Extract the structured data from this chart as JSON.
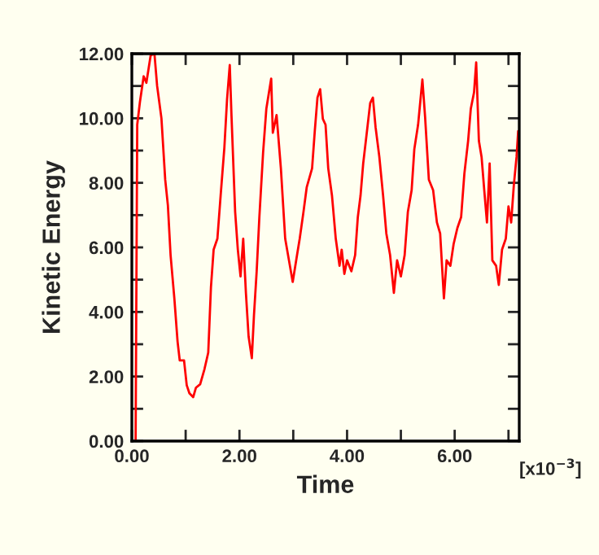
{
  "chart_data": {
    "type": "line",
    "xlabel": "Time",
    "ylabel": "Kinetic Energy",
    "annotations": [
      "[x10$^{−3}$]"
    ],
    "xlim": [
      0,
      7.2
    ],
    "ylim": [
      0,
      12
    ],
    "xticks": [
      {
        "value": 0,
        "label": "0.00"
      },
      {
        "value": 1,
        "label": null
      },
      {
        "value": 2,
        "label": "2.00"
      },
      {
        "value": 3,
        "label": null
      },
      {
        "value": 4,
        "label": "4.00"
      },
      {
        "value": 5,
        "label": null
      },
      {
        "value": 6,
        "label": "6.00"
      },
      {
        "value": 7,
        "label": null
      }
    ],
    "yticks": [
      {
        "value": 0,
        "label": "0.00"
      },
      {
        "value": 1,
        "label": null
      },
      {
        "value": 2,
        "label": "2.00"
      },
      {
        "value": 3,
        "label": null
      },
      {
        "value": 4,
        "label": "4.00"
      },
      {
        "value": 5,
        "label": null
      },
      {
        "value": 6,
        "label": "6.00"
      },
      {
        "value": 7,
        "label": null
      },
      {
        "value": 8,
        "label": "8.00"
      },
      {
        "value": 9,
        "label": null
      },
      {
        "value": 10,
        "label": "10.00"
      },
      {
        "value": 11,
        "label": null
      },
      {
        "value": 12,
        "label": "12.00"
      }
    ],
    "grid": false,
    "legend": false,
    "marker": "none",
    "line_style": "solid",
    "series": [
      {
        "color": "#ff0000",
        "x": [
          0.07,
          0.1,
          0.15,
          0.22,
          0.27,
          0.35,
          0.42,
          0.47,
          0.55,
          0.62,
          0.67,
          0.72,
          0.79,
          0.85,
          0.89,
          0.97,
          1.02,
          1.07,
          1.14,
          1.19,
          1.27,
          1.35,
          1.42,
          1.47,
          1.52,
          1.59,
          1.65,
          1.72,
          1.77,
          1.82,
          1.85,
          1.92,
          1.97,
          2.02,
          2.07,
          2.12,
          2.17,
          2.23,
          2.27,
          2.32,
          2.37,
          2.44,
          2.5,
          2.59,
          2.62,
          2.69,
          2.77,
          2.85,
          2.92,
          2.99,
          3.07,
          3.12,
          3.19,
          3.25,
          3.35,
          3.4,
          3.45,
          3.5,
          3.55,
          3.6,
          3.65,
          3.72,
          3.79,
          3.86,
          3.9,
          3.95,
          4.0,
          4.08,
          4.15,
          4.2,
          4.25,
          4.3,
          4.37,
          4.43,
          4.48,
          4.53,
          4.6,
          4.67,
          4.73,
          4.8,
          4.87,
          4.93,
          5.0,
          5.07,
          5.13,
          5.2,
          5.25,
          5.32,
          5.4,
          5.45,
          5.52,
          5.6,
          5.67,
          5.73,
          5.8,
          5.85,
          5.92,
          5.98,
          6.05,
          6.12,
          6.18,
          6.25,
          6.3,
          6.36,
          6.4,
          6.45,
          6.5,
          6.55,
          6.6,
          6.65,
          6.7,
          6.77,
          6.82,
          6.88,
          6.95,
          7.0,
          7.05,
          7.1,
          7.15,
          7.18
        ],
        "values": [
          0,
          9.8,
          10.5,
          11.3,
          11.1,
          11.95,
          12.0,
          11.0,
          10.0,
          8.1,
          7.3,
          5.76,
          4.42,
          3.08,
          2.5,
          2.5,
          1.73,
          1.48,
          1.36,
          1.65,
          1.76,
          2.23,
          2.74,
          4.76,
          5.93,
          6.27,
          7.6,
          9.1,
          10.6,
          11.65,
          10.17,
          7.1,
          5.93,
          5.1,
          6.27,
          4.59,
          3.24,
          2.57,
          3.9,
          5.26,
          6.94,
          8.95,
          10.3,
          11.23,
          9.55,
          10.1,
          8.45,
          6.27,
          5.6,
          4.93,
          5.76,
          6.27,
          7.1,
          7.86,
          8.45,
          9.6,
          10.64,
          10.9,
          9.98,
          9.8,
          8.45,
          7.6,
          6.27,
          5.43,
          5.93,
          5.18,
          5.6,
          5.26,
          5.76,
          6.94,
          7.6,
          8.6,
          9.6,
          10.47,
          10.64,
          9.72,
          8.8,
          7.6,
          6.43,
          5.76,
          4.59,
          5.6,
          5.1,
          5.76,
          7.1,
          7.77,
          9.04,
          9.8,
          11.2,
          10.05,
          8.1,
          7.77,
          6.77,
          6.43,
          4.42,
          5.6,
          5.43,
          6.1,
          6.6,
          6.94,
          8.28,
          9.3,
          10.3,
          10.8,
          11.73,
          9.3,
          8.8,
          7.77,
          6.77,
          8.6,
          5.6,
          5.43,
          4.84,
          5.93,
          6.27,
          7.27,
          6.77,
          7.94,
          8.8,
          9.6
        ]
      }
    ]
  }
}
